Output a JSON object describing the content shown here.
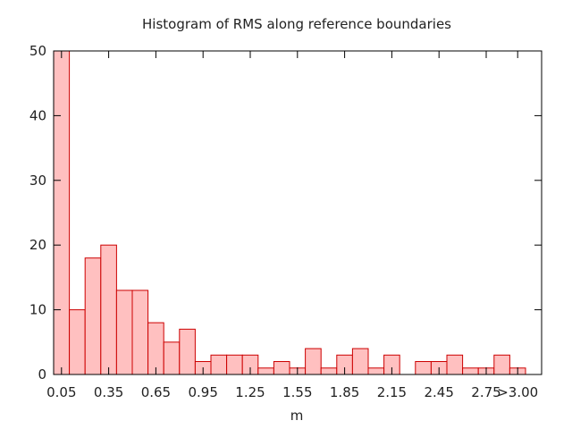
{
  "chart_data": {
    "type": "bar",
    "title": "Histogram of RMS along reference boundaries",
    "xlabel": "m",
    "ylabel": "",
    "ylim": [
      0,
      50
    ],
    "yticks": [
      0,
      10,
      20,
      30,
      40,
      50
    ],
    "xtick_labels": [
      "0.05",
      "0.35",
      "0.65",
      "0.95",
      "1.25",
      "1.55",
      "1.85",
      "2.15",
      "2.45",
      "2.75",
      ">3.00"
    ],
    "categories": [
      "0.05",
      "0.15",
      "0.25",
      "0.35",
      "0.45",
      "0.55",
      "0.65",
      "0.75",
      "0.85",
      "0.95",
      "1.05",
      "1.15",
      "1.25",
      "1.35",
      "1.45",
      "1.55",
      "1.65",
      "1.75",
      "1.85",
      "1.95",
      "2.05",
      "2.15",
      "2.25",
      "2.35",
      "2.45",
      "2.55",
      "2.65",
      "2.75",
      "2.85",
      "2.95"
    ],
    "values": [
      50,
      10,
      18,
      20,
      13,
      13,
      8,
      5,
      7,
      2,
      3,
      3,
      3,
      1,
      2,
      1,
      4,
      1,
      3,
      4,
      1,
      3,
      0,
      2,
      2,
      3,
      1,
      1,
      3,
      1
    ],
    "grid": false,
    "legend": "none",
    "colors": {
      "fill": "#ffc0c0",
      "stroke": "#cc0000"
    }
  }
}
